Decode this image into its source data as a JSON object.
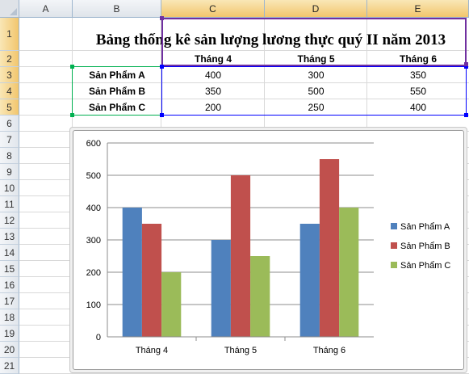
{
  "columns": [
    "A",
    "B",
    "C",
    "D",
    "E"
  ],
  "rows": [
    "1",
    "2",
    "3",
    "4",
    "5",
    "6",
    "7",
    "8",
    "9",
    "10",
    "11",
    "12",
    "13",
    "14",
    "15",
    "16",
    "17",
    "18",
    "19",
    "20",
    "21"
  ],
  "sheet": {
    "title": "Bảng thống kê sản lượng lương thực quý II năm 2013",
    "months": [
      "Tháng 4",
      "Tháng 5",
      "Tháng 6"
    ],
    "products": [
      {
        "name": "Sản Phẩm A",
        "values": [
          "400",
          "300",
          "350"
        ]
      },
      {
        "name": "Sản Phẩm B",
        "values": [
          "350",
          "500",
          "550"
        ]
      },
      {
        "name": "Sản Phẩm C",
        "values": [
          "200",
          "250",
          "400"
        ]
      }
    ]
  },
  "colors": {
    "series_a": "#4f81bd",
    "series_b": "#c0504d",
    "series_c": "#9bbb59",
    "selection_purple": "#7030a0",
    "selection_green": "#00b050",
    "selection_blue": "#0000ff"
  },
  "chart_data": {
    "type": "bar",
    "categories": [
      "Tháng 4",
      "Tháng 5",
      "Tháng 6"
    ],
    "series": [
      {
        "name": "Sản Phẩm A",
        "values": [
          400,
          300,
          350
        ]
      },
      {
        "name": "Sản Phẩm B",
        "values": [
          350,
          500,
          550
        ]
      },
      {
        "name": "Sản Phẩm C",
        "values": [
          200,
          250,
          400
        ]
      }
    ],
    "yticks": [
      0,
      100,
      200,
      300,
      400,
      500,
      600
    ],
    "ylim": [
      0,
      600
    ],
    "grid": true,
    "legend": "right"
  }
}
